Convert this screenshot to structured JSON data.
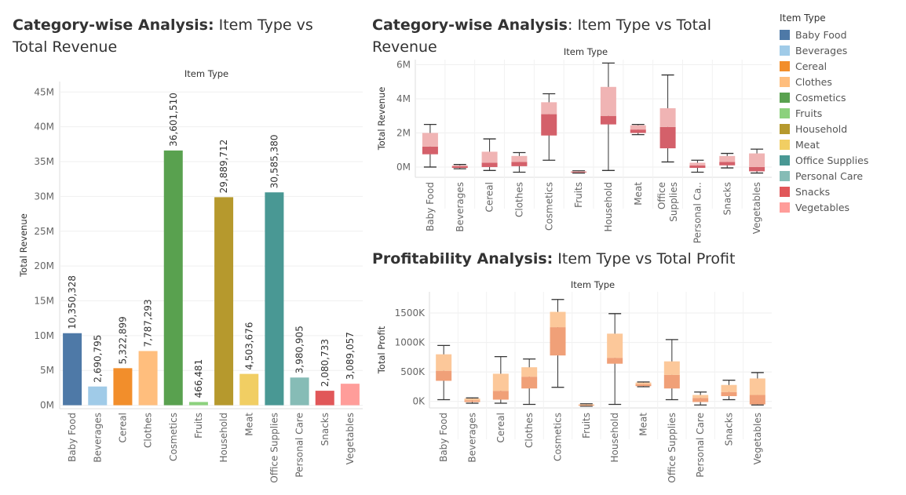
{
  "titles": {
    "left_bold": "Category-wise Analysis:",
    "left_rest": " Item Type vs Total Revenue",
    "top_right_bold": "Category-wise Analysis",
    "top_right_rest": ": Item Type vs Total Revenue",
    "bottom_right_bold": "Profitability Analysis:",
    "bottom_right_rest": " Item Type vs Total Profit"
  },
  "legend": {
    "title": "Item Type",
    "items": [
      {
        "label": "Baby Food",
        "color": "#4e79a7"
      },
      {
        "label": "Beverages",
        "color": "#a0cbe8"
      },
      {
        "label": "Cereal",
        "color": "#f28e2b"
      },
      {
        "label": "Clothes",
        "color": "#ffbe7d"
      },
      {
        "label": "Cosmetics",
        "color": "#59a14f"
      },
      {
        "label": "Fruits",
        "color": "#8cd17d"
      },
      {
        "label": "Household",
        "color": "#b6992d"
      },
      {
        "label": "Meat",
        "color": "#f1ce63"
      },
      {
        "label": "Office Supplies",
        "color": "#499894"
      },
      {
        "label": "Personal Care",
        "color": "#86bcb6"
      },
      {
        "label": "Snacks",
        "color": "#e15759"
      },
      {
        "label": "Vegetables",
        "color": "#ff9d9a"
      }
    ]
  },
  "chart_data": [
    {
      "type": "bar",
      "title": "Category-wise Analysis: Item Type vs Total Revenue",
      "xlabel": "Item Type",
      "ylabel": "Total Revenue",
      "categories": [
        "Baby Food",
        "Beverages",
        "Cereal",
        "Clothes",
        "Cosmetics",
        "Fruits",
        "Household",
        "Meat",
        "Office Supplies",
        "Personal Care",
        "Snacks",
        "Vegetables"
      ],
      "values": [
        10350328,
        2690795,
        5322899,
        7787293,
        36601510,
        466481,
        29889712,
        4503676,
        30585380,
        3980905,
        2080733,
        3089057
      ],
      "value_labels": [
        "10,350,328",
        "2,690,795",
        "5,322,899",
        "7,787,293",
        "36,601,510",
        "466,481",
        "29,889,712",
        "4,503,676",
        "30,585,380",
        "3,980,905",
        "2,080,733",
        "3,089,057"
      ],
      "colors": [
        "#4e79a7",
        "#a0cbe8",
        "#f28e2b",
        "#ffbe7d",
        "#59a14f",
        "#8cd17d",
        "#b6992d",
        "#f1ce63",
        "#499894",
        "#86bcb6",
        "#e15759",
        "#ff9d9a"
      ],
      "yticks": [
        0,
        5000000,
        10000000,
        15000000,
        20000000,
        25000000,
        30000000,
        35000000,
        40000000,
        45000000
      ],
      "ytick_labels": [
        "0M",
        "5M",
        "10M",
        "15M",
        "20M",
        "25M",
        "30M",
        "35M",
        "40M",
        "45M"
      ],
      "ylim": [
        -500000,
        46500000
      ],
      "grid": true
    },
    {
      "type": "box",
      "title": "Category-wise Analysis: Item Type vs Total Revenue",
      "xlabel": "Item Type",
      "ylabel": "Total Revenue",
      "categories": [
        "Baby Food",
        "Beverages",
        "Cereal",
        "Clothes",
        "Cosmetics",
        "Fruits",
        "Household",
        "Meat",
        "Office Supplies",
        "Personal Care",
        "Snacks",
        "Vegetables"
      ],
      "category_labels": [
        [
          "Baby Food"
        ],
        [
          "Beverages"
        ],
        [
          "Cereal"
        ],
        [
          "Clothes"
        ],
        [
          "Cosmetics"
        ],
        [
          "Fruits"
        ],
        [
          "Household"
        ],
        [
          "Meat"
        ],
        [
          "Office",
          "Supplies"
        ],
        [
          "Personal Ca.."
        ],
        [
          "Snacks"
        ],
        [
          "Vegetables"
        ]
      ],
      "boxes": [
        {
          "min": 0.0,
          "q1": 0.75,
          "median": 1.2,
          "q3": 2.0,
          "max": 2.5
        },
        {
          "min": -0.1,
          "q1": -0.05,
          "median": 0.05,
          "q3": 0.1,
          "max": 0.15
        },
        {
          "min": -0.2,
          "q1": 0.0,
          "median": 0.25,
          "q3": 0.9,
          "max": 1.65
        },
        {
          "min": -0.3,
          "q1": 0.05,
          "median": 0.3,
          "q3": 0.65,
          "max": 0.85
        },
        {
          "min": 0.4,
          "q1": 1.85,
          "median": 3.1,
          "q3": 3.8,
          "max": 4.3
        },
        {
          "min": -0.35,
          "q1": -0.3,
          "median": -0.28,
          "q3": -0.25,
          "max": -0.22
        },
        {
          "min": -0.2,
          "q1": 2.5,
          "median": 3.0,
          "q3": 4.7,
          "max": 6.1
        },
        {
          "min": 1.9,
          "q1": 2.0,
          "median": 2.2,
          "q3": 2.45,
          "max": 2.5
        },
        {
          "min": 0.3,
          "q1": 1.1,
          "median": 2.35,
          "q3": 3.45,
          "max": 5.4
        },
        {
          "min": -0.3,
          "q1": -0.05,
          "median": 0.1,
          "q3": 0.25,
          "max": 0.4
        },
        {
          "min": -0.05,
          "q1": 0.1,
          "median": 0.3,
          "q3": 0.65,
          "max": 0.8
        },
        {
          "min": -0.35,
          "q1": -0.25,
          "median": 0.0,
          "q3": 0.8,
          "max": 1.05
        }
      ],
      "units": "M",
      "yticks": [
        0,
        2,
        4,
        6
      ],
      "ytick_labels": [
        "0M",
        "2M",
        "4M",
        "6M"
      ],
      "ylim": [
        -0.6,
        6.3
      ],
      "box_colors": {
        "lower": "#d4606a",
        "upper": "#f0b4b4"
      },
      "grid": true
    },
    {
      "type": "box",
      "title": "Profitability Analysis: Item Type vs Total Profit",
      "xlabel": "Item Type",
      "ylabel": "Total Profit",
      "categories": [
        "Baby Food",
        "Beverages",
        "Cereal",
        "Clothes",
        "Cosmetics",
        "Fruits",
        "Household",
        "Meat",
        "Office Supplies",
        "Personal Care",
        "Snacks",
        "Vegetables"
      ],
      "boxes": [
        {
          "min": 30000,
          "q1": 350000,
          "median": 520000,
          "q3": 800000,
          "max": 950000
        },
        {
          "min": -30000,
          "q1": -10000,
          "median": 20000,
          "q3": 50000,
          "max": 60000
        },
        {
          "min": -30000,
          "q1": 30000,
          "median": 180000,
          "q3": 470000,
          "max": 760000
        },
        {
          "min": -50000,
          "q1": 220000,
          "median": 420000,
          "q3": 580000,
          "max": 720000
        },
        {
          "min": 240000,
          "q1": 780000,
          "median": 1260000,
          "q3": 1520000,
          "max": 1730000
        },
        {
          "min": -80000,
          "q1": -70000,
          "median": -60000,
          "q3": -50000,
          "max": -40000
        },
        {
          "min": -50000,
          "q1": 640000,
          "median": 740000,
          "q3": 1150000,
          "max": 1490000
        },
        {
          "min": 250000,
          "q1": 260000,
          "median": 290000,
          "q3": 320000,
          "max": 330000
        },
        {
          "min": 30000,
          "q1": 220000,
          "median": 450000,
          "q3": 680000,
          "max": 1050000
        },
        {
          "min": -60000,
          "q1": -10000,
          "median": 60000,
          "q3": 110000,
          "max": 160000
        },
        {
          "min": 30000,
          "q1": 90000,
          "median": 160000,
          "q3": 280000,
          "max": 360000
        },
        {
          "min": -60000,
          "q1": -50000,
          "median": 110000,
          "q3": 390000,
          "max": 490000
        }
      ],
      "yticks": [
        0,
        500000,
        1000000,
        1500000
      ],
      "ytick_labels": [
        "0K",
        "500K",
        "1000K",
        "1500K"
      ],
      "ylim": [
        -110000,
        1860000
      ],
      "box_colors": {
        "lower": "#f0a078",
        "upper": "#fcc89a"
      },
      "grid": true
    }
  ]
}
